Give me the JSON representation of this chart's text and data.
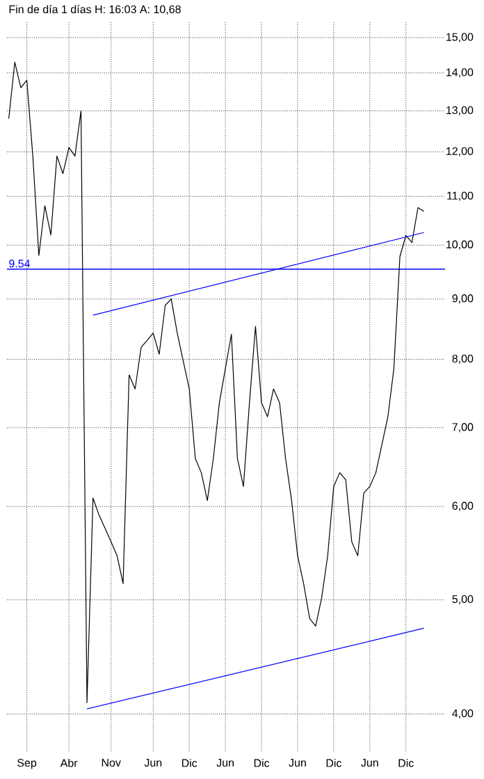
{
  "chart_data": {
    "type": "line",
    "title": "Fin de día 1 días  H: 16:03  A: 10,68",
    "categories": [
      null,
      null,
      null,
      "Sep",
      null,
      null,
      null,
      null,
      null,
      null,
      "Abr",
      null,
      null,
      null,
      null,
      null,
      null,
      "Nov",
      null,
      null,
      null,
      null,
      null,
      null,
      "Jun",
      null,
      null,
      null,
      null,
      null,
      "Dic",
      null,
      null,
      null,
      null,
      null,
      "Jun",
      null,
      null,
      null,
      null,
      null,
      "Dic",
      null,
      null,
      null,
      null,
      null,
      "Jun",
      null,
      null,
      null,
      null,
      null,
      "Dic",
      null,
      null,
      null,
      null,
      null,
      "Jun",
      null,
      null,
      null,
      null,
      null,
      "Dic",
      null,
      null,
      null
    ],
    "series": [
      {
        "color": "#000000",
        "values": [
          12.8,
          14.3,
          13.6,
          13.8,
          11.9,
          9.8,
          10.8,
          10.2,
          11.9,
          11.5,
          12.1,
          11.9,
          13.0,
          4.09,
          6.1,
          5.9,
          5.75,
          5.6,
          5.45,
          5.16,
          7.76,
          7.55,
          8.19,
          8.3,
          8.42,
          8.08,
          8.89,
          9.0,
          8.42,
          7.97,
          7.55,
          6.59,
          6.41,
          6.07,
          6.59,
          7.35,
          7.86,
          8.4,
          6.59,
          6.24,
          7.35,
          8.53,
          7.35,
          7.15,
          7.55,
          7.35,
          6.59,
          6.07,
          5.45,
          5.16,
          4.82,
          4.75,
          5.02,
          5.45,
          6.24,
          6.41,
          6.32,
          5.6,
          5.45,
          6.16,
          6.24,
          6.41,
          6.77,
          7.15,
          7.86,
          9.78,
          10.19,
          10.05,
          10.76,
          10.68
        ]
      },
      {
        "color": "#0000ff",
        "values": [
          null,
          null,
          null,
          null,
          null,
          null,
          null,
          null,
          null,
          null,
          null,
          null,
          null,
          null,
          8.72,
          null,
          null,
          null,
          null,
          null,
          null,
          null,
          null,
          null,
          null,
          null,
          null,
          null,
          null,
          null,
          null,
          null,
          null,
          null,
          null,
          null,
          null,
          null,
          null,
          null,
          null,
          null,
          null,
          null,
          null,
          null,
          null,
          null,
          null,
          null,
          null,
          null,
          null,
          null,
          null,
          null,
          null,
          null,
          null,
          null,
          null,
          null,
          null,
          null,
          null,
          null,
          null,
          null,
          null,
          10.25
        ]
      },
      {
        "color": "#0000ff",
        "values": [
          null,
          null,
          null,
          null,
          null,
          null,
          null,
          null,
          null,
          null,
          null,
          null,
          null,
          4.04,
          null,
          null,
          null,
          null,
          null,
          null,
          null,
          null,
          null,
          null,
          null,
          null,
          null,
          null,
          null,
          null,
          null,
          null,
          null,
          null,
          null,
          null,
          null,
          null,
          null,
          null,
          null,
          null,
          null,
          null,
          null,
          null,
          null,
          null,
          null,
          null,
          null,
          null,
          null,
          null,
          null,
          null,
          null,
          null,
          null,
          null,
          null,
          null,
          null,
          null,
          null,
          null,
          null,
          null,
          null,
          4.73
        ]
      }
    ],
    "ylim": [
      3.72,
      15.5
    ],
    "yticks": [
      {
        "value": 4,
        "label": "4,00"
      },
      {
        "value": 5,
        "label": "5,00"
      },
      {
        "value": 6,
        "label": "6,00"
      },
      {
        "value": 7,
        "label": "7,00"
      },
      {
        "value": 8,
        "label": "8,00"
      },
      {
        "value": 9,
        "label": "9,00"
      },
      {
        "value": 10,
        "label": "10,00"
      },
      {
        "value": 11,
        "label": "11,00"
      },
      {
        "value": 12,
        "label": "12,00"
      },
      {
        "value": 13,
        "label": "13,00"
      },
      {
        "value": 14,
        "label": "14,00"
      },
      {
        "value": 15,
        "label": "15,00"
      }
    ],
    "log": "y",
    "grid": true,
    "ref_lines": [
      {
        "axis": "y",
        "value": 9.54,
        "label": "9.54",
        "color": "#0000ff"
      }
    ]
  }
}
